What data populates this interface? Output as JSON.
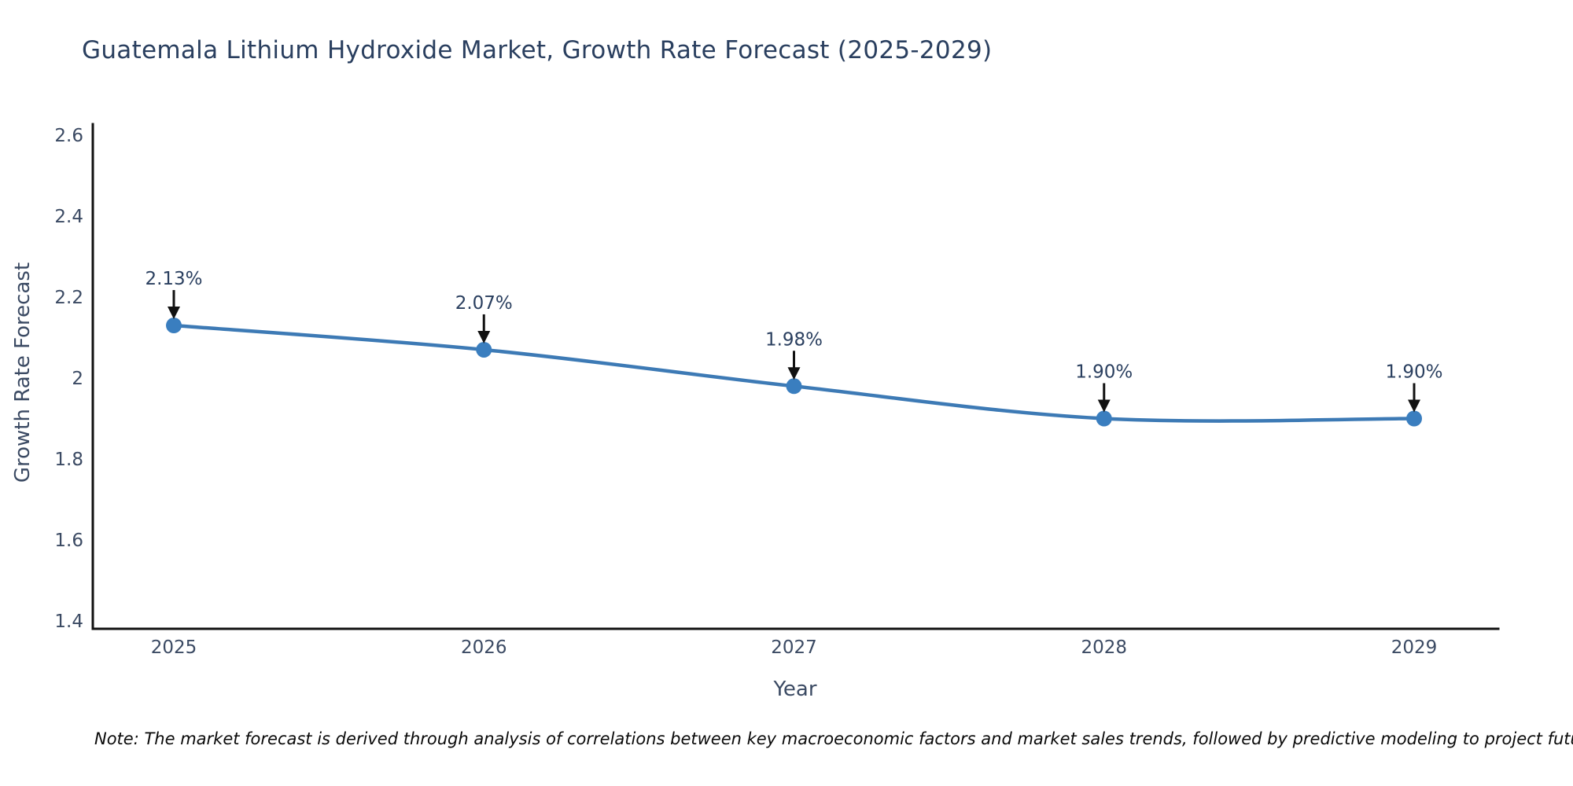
{
  "header": {
    "title": "Guatemala Lithium Hydroxide Market, Growth Rate Forecast (2025-2029)"
  },
  "note": "Note: The market forecast is derived through analysis of correlations between key macroeconomic factors and market sales trends, followed by predictive modeling to project future sales",
  "chart_data": {
    "type": "line",
    "title": "Guatemala Lithium Hydroxide Market, Growth Rate Forecast (2025-2029)",
    "xlabel": "Year",
    "ylabel": "Growth Rate Forecast",
    "categories": [
      "2025",
      "2026",
      "2027",
      "2028",
      "2029"
    ],
    "series": [
      {
        "name": "Growth Rate Forecast",
        "values": [
          2.13,
          2.07,
          1.98,
          1.9,
          1.9
        ]
      }
    ],
    "point_labels": [
      "2.13%",
      "2.07%",
      "1.98%",
      "1.90%",
      "1.90%"
    ],
    "yticks": [
      "2.6",
      "2.4",
      "2.2",
      "2",
      "1.8",
      "1.6",
      "1.4"
    ],
    "ylim": [
      1.4,
      2.6
    ],
    "grid": false,
    "legend": false,
    "line_shape": "spline",
    "annotation_style": "label-above-with-down-arrow",
    "colors": {
      "line": "#3d7ab5",
      "marker": "#3a7ebf",
      "axis": "#111111",
      "arrow": "#111111",
      "title_text": "#2a3f5f",
      "tick_text": "#3b4a63",
      "annotation_text": "#2a3f5f"
    }
  }
}
